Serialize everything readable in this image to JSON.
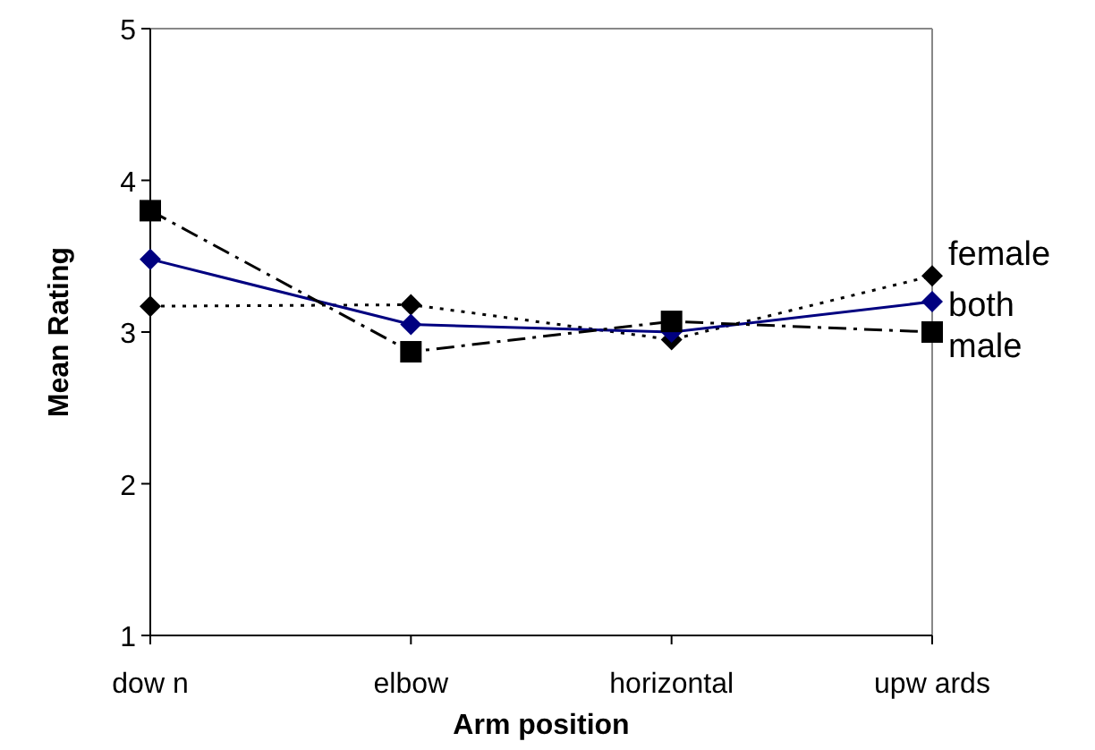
{
  "chart_data": {
    "type": "line",
    "xlabel": "Arm position",
    "ylabel": "Mean Rating",
    "categories": [
      "dow n",
      "elbow",
      "horizontal",
      "upw ards"
    ],
    "ylim": [
      1,
      5
    ],
    "yticks": [
      1,
      2,
      3,
      4,
      5
    ],
    "grid": false,
    "series": [
      {
        "name": "female",
        "color": "#000000",
        "marker": "diamond",
        "line_style": "dotted",
        "values": [
          3.17,
          3.18,
          2.95,
          3.37
        ]
      },
      {
        "name": "both",
        "color": "#000080",
        "marker": "diamond",
        "line_style": "solid",
        "values": [
          3.48,
          3.05,
          3.0,
          3.2
        ]
      },
      {
        "name": "male",
        "color": "#000000",
        "marker": "square",
        "line_style": "dashdot",
        "values": [
          3.8,
          2.87,
          3.07,
          3.0
        ]
      }
    ]
  }
}
